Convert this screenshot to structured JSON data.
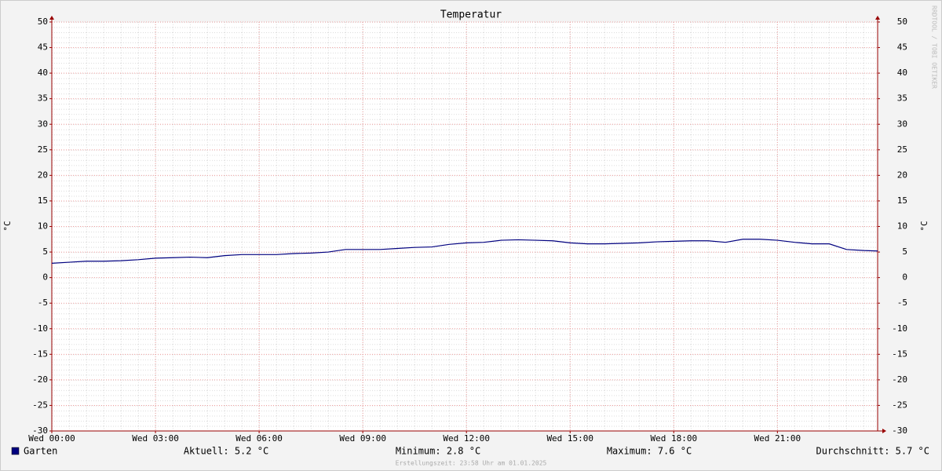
{
  "chart_data": {
    "type": "line",
    "title": "Temperatur",
    "y_label": "°C",
    "y2_label": "°C",
    "watermark": "RRDTOOL / TOBI OETIKER",
    "x": [
      0,
      0.5,
      1,
      1.5,
      2,
      2.5,
      3,
      3.5,
      4,
      4.5,
      5,
      5.5,
      6,
      6.5,
      7,
      7.5,
      8,
      8.5,
      9,
      9.5,
      10,
      10.5,
      11,
      11.5,
      12,
      12.5,
      13,
      13.5,
      14,
      14.5,
      15,
      15.5,
      16,
      16.5,
      17,
      17.5,
      18,
      18.5,
      19,
      19.5,
      20,
      20.5,
      21,
      21.5,
      22,
      22.5,
      23,
      23.5,
      23.9
    ],
    "series": [
      {
        "name": "Garten",
        "color": "#00007f",
        "values": [
          2.8,
          3.0,
          3.2,
          3.2,
          3.3,
          3.5,
          3.8,
          3.9,
          4.0,
          3.9,
          4.3,
          4.5,
          4.5,
          4.5,
          4.7,
          4.8,
          5.0,
          5.5,
          5.5,
          5.5,
          5.7,
          5.9,
          6.0,
          6.5,
          6.8,
          6.9,
          7.3,
          7.4,
          7.3,
          7.2,
          6.8,
          6.6,
          6.6,
          6.7,
          6.8,
          7.0,
          7.1,
          7.2,
          7.2,
          6.9,
          7.5,
          7.5,
          7.3,
          6.9,
          6.6,
          6.6,
          5.5,
          5.3,
          5.2
        ]
      }
    ],
    "xlim": [
      0,
      23.9
    ],
    "xticks": [
      {
        "value": 0,
        "label": "Wed 00:00"
      },
      {
        "value": 3,
        "label": "Wed 03:00"
      },
      {
        "value": 6,
        "label": "Wed 06:00"
      },
      {
        "value": 9,
        "label": "Wed 09:00"
      },
      {
        "value": 12,
        "label": "Wed 12:00"
      },
      {
        "value": 15,
        "label": "Wed 15:00"
      },
      {
        "value": 18,
        "label": "Wed 18:00"
      },
      {
        "value": 21,
        "label": "Wed 21:00"
      }
    ],
    "ylim": [
      -30,
      50
    ],
    "yticks": [
      -30,
      -25,
      -20,
      -15,
      -10,
      -5,
      0,
      5,
      10,
      15,
      20,
      25,
      30,
      35,
      40,
      45,
      50
    ],
    "y2lim": [
      -30,
      50
    ],
    "y2ticks": [
      -30,
      -25,
      -20,
      -15,
      -10,
      -5,
      0,
      5,
      10,
      15,
      20,
      25,
      30,
      35,
      40,
      45,
      50
    ],
    "grid": true,
    "stats": [
      "Aktuell: 5.2 °C",
      "Minimum: 2.8 °C",
      "Maximum: 7.6 °C",
      "Durchschnitt: 5.7 °C"
    ],
    "footer": "Erstellungszeit: 23:58 Uhr am 01.01.2025"
  }
}
